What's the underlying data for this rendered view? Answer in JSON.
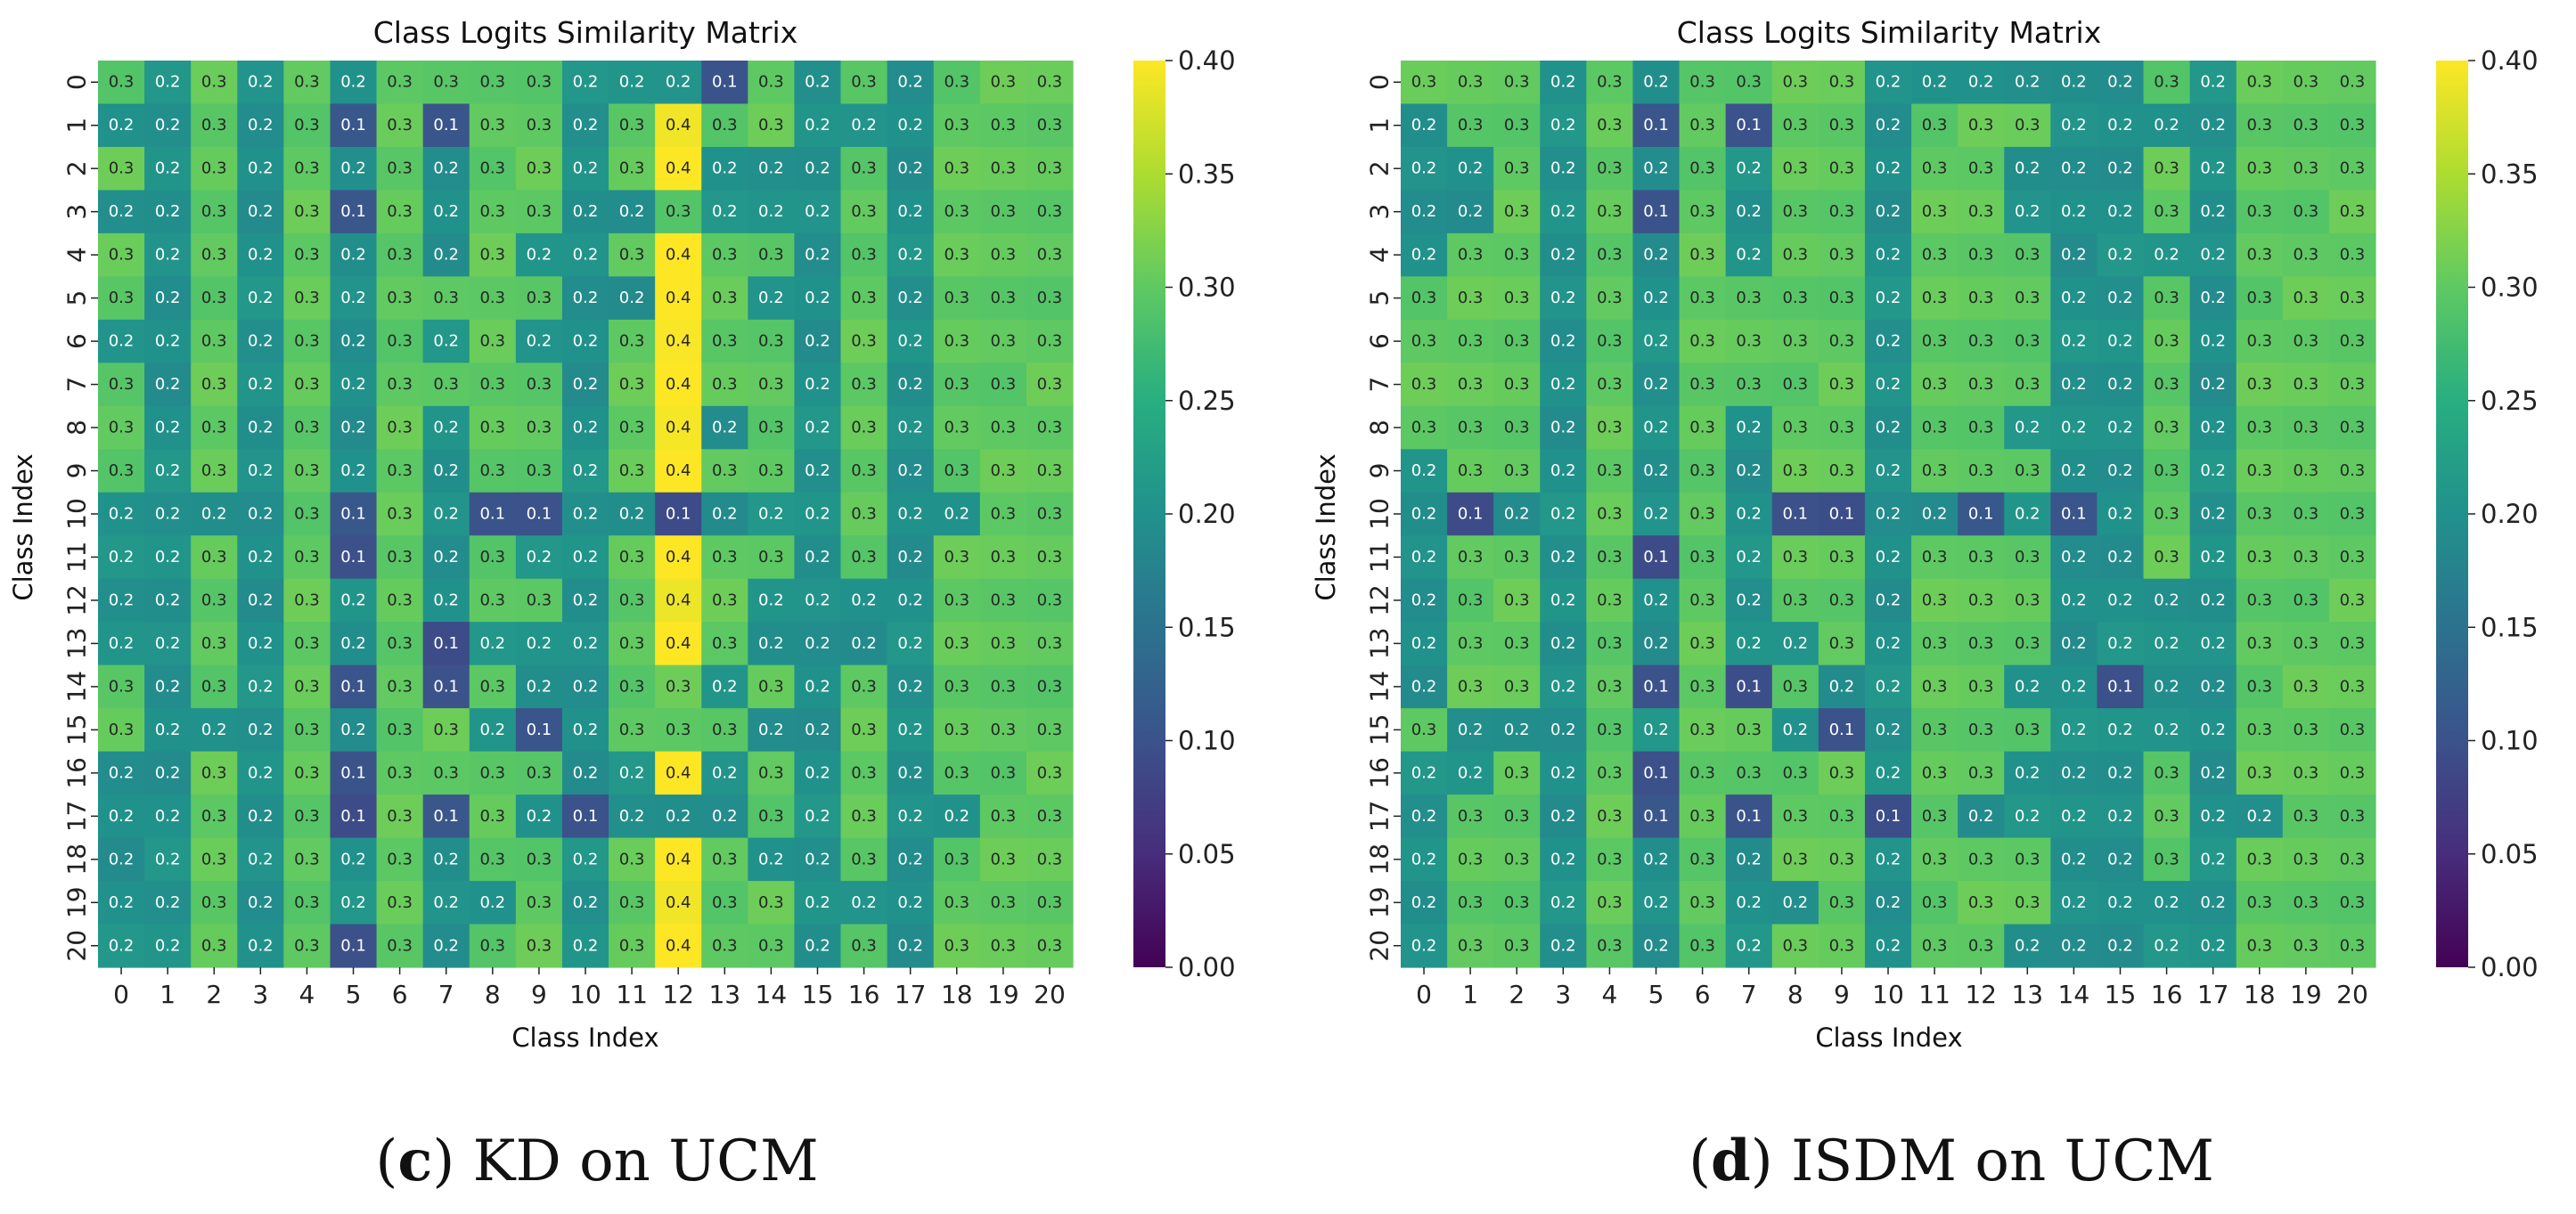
{
  "chart_data": [
    {
      "type": "heatmap",
      "title": "Class Logits Similarity Matrix",
      "xlabel": "Class Index",
      "ylabel": "Class Index",
      "categories": [
        "0",
        "1",
        "2",
        "3",
        "4",
        "5",
        "6",
        "7",
        "8",
        "9",
        "10",
        "11",
        "12",
        "13",
        "14",
        "15",
        "16",
        "17",
        "18",
        "19",
        "20"
      ],
      "vmin": 0.0,
      "vmax": 0.4,
      "colormap": "viridis",
      "colorbar_ticks": [
        "0.00",
        "0.05",
        "0.10",
        "0.15",
        "0.20",
        "0.25",
        "0.30",
        "0.35",
        "0.40"
      ],
      "caption_letter": "c",
      "caption_text": " KD on UCM",
      "values": [
        [
          0.3,
          0.2,
          0.3,
          0.2,
          0.3,
          0.2,
          0.3,
          0.3,
          0.3,
          0.3,
          0.2,
          0.2,
          0.2,
          0.1,
          0.3,
          0.2,
          0.3,
          0.2,
          0.3,
          0.3,
          0.3
        ],
        [
          0.2,
          0.2,
          0.3,
          0.2,
          0.3,
          0.1,
          0.3,
          0.1,
          0.3,
          0.3,
          0.2,
          0.3,
          0.4,
          0.3,
          0.3,
          0.2,
          0.2,
          0.2,
          0.3,
          0.3,
          0.3
        ],
        [
          0.3,
          0.2,
          0.3,
          0.2,
          0.3,
          0.2,
          0.3,
          0.2,
          0.3,
          0.3,
          0.2,
          0.3,
          0.4,
          0.2,
          0.2,
          0.2,
          0.3,
          0.2,
          0.3,
          0.3,
          0.3
        ],
        [
          0.2,
          0.2,
          0.3,
          0.2,
          0.3,
          0.1,
          0.3,
          0.2,
          0.3,
          0.3,
          0.2,
          0.2,
          0.3,
          0.2,
          0.2,
          0.2,
          0.3,
          0.2,
          0.3,
          0.3,
          0.3
        ],
        [
          0.3,
          0.2,
          0.3,
          0.2,
          0.3,
          0.2,
          0.3,
          0.2,
          0.3,
          0.2,
          0.2,
          0.3,
          0.4,
          0.3,
          0.3,
          0.2,
          0.3,
          0.2,
          0.3,
          0.3,
          0.3
        ],
        [
          0.3,
          0.2,
          0.3,
          0.2,
          0.3,
          0.2,
          0.3,
          0.3,
          0.3,
          0.3,
          0.2,
          0.2,
          0.4,
          0.3,
          0.2,
          0.2,
          0.3,
          0.2,
          0.3,
          0.3,
          0.3
        ],
        [
          0.2,
          0.2,
          0.3,
          0.2,
          0.3,
          0.2,
          0.3,
          0.2,
          0.3,
          0.2,
          0.2,
          0.3,
          0.4,
          0.3,
          0.3,
          0.2,
          0.3,
          0.2,
          0.3,
          0.3,
          0.3
        ],
        [
          0.3,
          0.2,
          0.3,
          0.2,
          0.3,
          0.2,
          0.3,
          0.3,
          0.3,
          0.3,
          0.2,
          0.3,
          0.4,
          0.3,
          0.3,
          0.2,
          0.3,
          0.2,
          0.3,
          0.3,
          0.3
        ],
        [
          0.3,
          0.2,
          0.3,
          0.2,
          0.3,
          0.2,
          0.3,
          0.2,
          0.3,
          0.3,
          0.2,
          0.3,
          0.4,
          0.2,
          0.3,
          0.2,
          0.3,
          0.2,
          0.3,
          0.3,
          0.3
        ],
        [
          0.3,
          0.2,
          0.3,
          0.2,
          0.3,
          0.2,
          0.3,
          0.2,
          0.3,
          0.3,
          0.2,
          0.3,
          0.4,
          0.3,
          0.3,
          0.2,
          0.3,
          0.2,
          0.3,
          0.3,
          0.3
        ],
        [
          0.2,
          0.2,
          0.2,
          0.2,
          0.3,
          0.1,
          0.3,
          0.2,
          0.1,
          0.1,
          0.2,
          0.2,
          0.1,
          0.2,
          0.2,
          0.2,
          0.3,
          0.2,
          0.2,
          0.3,
          0.3
        ],
        [
          0.2,
          0.2,
          0.3,
          0.2,
          0.3,
          0.1,
          0.3,
          0.2,
          0.3,
          0.2,
          0.2,
          0.3,
          0.4,
          0.3,
          0.3,
          0.2,
          0.3,
          0.2,
          0.3,
          0.3,
          0.3
        ],
        [
          0.2,
          0.2,
          0.3,
          0.2,
          0.3,
          0.2,
          0.3,
          0.2,
          0.3,
          0.3,
          0.2,
          0.3,
          0.4,
          0.3,
          0.2,
          0.2,
          0.2,
          0.2,
          0.3,
          0.3,
          0.3
        ],
        [
          0.2,
          0.2,
          0.3,
          0.2,
          0.3,
          0.2,
          0.3,
          0.1,
          0.2,
          0.2,
          0.2,
          0.3,
          0.4,
          0.3,
          0.2,
          0.2,
          0.2,
          0.2,
          0.3,
          0.3,
          0.3
        ],
        [
          0.3,
          0.2,
          0.3,
          0.2,
          0.3,
          0.1,
          0.3,
          0.1,
          0.3,
          0.2,
          0.2,
          0.3,
          0.3,
          0.2,
          0.3,
          0.2,
          0.3,
          0.2,
          0.3,
          0.3,
          0.3
        ],
        [
          0.3,
          0.2,
          0.2,
          0.2,
          0.3,
          0.2,
          0.3,
          0.3,
          0.2,
          0.1,
          0.2,
          0.3,
          0.3,
          0.3,
          0.2,
          0.2,
          0.3,
          0.2,
          0.3,
          0.3,
          0.3
        ],
        [
          0.2,
          0.2,
          0.3,
          0.2,
          0.3,
          0.1,
          0.3,
          0.3,
          0.3,
          0.3,
          0.2,
          0.2,
          0.4,
          0.2,
          0.3,
          0.2,
          0.3,
          0.2,
          0.3,
          0.3,
          0.3
        ],
        [
          0.2,
          0.2,
          0.3,
          0.2,
          0.3,
          0.1,
          0.3,
          0.1,
          0.3,
          0.2,
          0.1,
          0.2,
          0.2,
          0.2,
          0.3,
          0.2,
          0.3,
          0.2,
          0.2,
          0.3,
          0.3
        ],
        [
          0.2,
          0.2,
          0.3,
          0.2,
          0.3,
          0.2,
          0.3,
          0.2,
          0.3,
          0.3,
          0.2,
          0.3,
          0.4,
          0.3,
          0.2,
          0.2,
          0.3,
          0.2,
          0.3,
          0.3,
          0.3
        ],
        [
          0.2,
          0.2,
          0.3,
          0.2,
          0.3,
          0.2,
          0.3,
          0.2,
          0.2,
          0.3,
          0.2,
          0.3,
          0.4,
          0.3,
          0.3,
          0.2,
          0.2,
          0.2,
          0.3,
          0.3,
          0.3
        ],
        [
          0.2,
          0.2,
          0.3,
          0.2,
          0.3,
          0.1,
          0.3,
          0.2,
          0.3,
          0.3,
          0.2,
          0.3,
          0.4,
          0.3,
          0.3,
          0.2,
          0.3,
          0.2,
          0.3,
          0.3,
          0.3
        ]
      ]
    },
    {
      "type": "heatmap",
      "title": "Class Logits Similarity Matrix",
      "xlabel": "Class Index",
      "ylabel": "Class Index",
      "categories": [
        "0",
        "1",
        "2",
        "3",
        "4",
        "5",
        "6",
        "7",
        "8",
        "9",
        "10",
        "11",
        "12",
        "13",
        "14",
        "15",
        "16",
        "17",
        "18",
        "19",
        "20"
      ],
      "vmin": 0.0,
      "vmax": 0.4,
      "colormap": "viridis",
      "colorbar_ticks": [
        "0.00",
        "0.05",
        "0.10",
        "0.15",
        "0.20",
        "0.25",
        "0.30",
        "0.35",
        "0.40"
      ],
      "caption_letter": "d",
      "caption_text": " ISDM on UCM",
      "values": [
        [
          0.3,
          0.3,
          0.3,
          0.2,
          0.3,
          0.2,
          0.3,
          0.3,
          0.3,
          0.3,
          0.2,
          0.2,
          0.2,
          0.2,
          0.2,
          0.2,
          0.3,
          0.2,
          0.3,
          0.3,
          0.3
        ],
        [
          0.2,
          0.3,
          0.3,
          0.2,
          0.3,
          0.1,
          0.3,
          0.1,
          0.3,
          0.3,
          0.2,
          0.3,
          0.3,
          0.3,
          0.2,
          0.2,
          0.2,
          0.2,
          0.3,
          0.3,
          0.3
        ],
        [
          0.2,
          0.2,
          0.3,
          0.2,
          0.3,
          0.2,
          0.3,
          0.2,
          0.3,
          0.3,
          0.2,
          0.3,
          0.3,
          0.2,
          0.2,
          0.2,
          0.3,
          0.2,
          0.3,
          0.3,
          0.3
        ],
        [
          0.2,
          0.2,
          0.3,
          0.2,
          0.3,
          0.1,
          0.3,
          0.2,
          0.3,
          0.3,
          0.2,
          0.3,
          0.3,
          0.2,
          0.2,
          0.2,
          0.3,
          0.2,
          0.3,
          0.3,
          0.3
        ],
        [
          0.2,
          0.3,
          0.3,
          0.2,
          0.3,
          0.2,
          0.3,
          0.2,
          0.3,
          0.3,
          0.2,
          0.3,
          0.3,
          0.3,
          0.2,
          0.2,
          0.2,
          0.2,
          0.3,
          0.3,
          0.3
        ],
        [
          0.3,
          0.3,
          0.3,
          0.2,
          0.3,
          0.2,
          0.3,
          0.3,
          0.3,
          0.3,
          0.2,
          0.3,
          0.3,
          0.3,
          0.2,
          0.2,
          0.3,
          0.2,
          0.3,
          0.3,
          0.3
        ],
        [
          0.3,
          0.3,
          0.3,
          0.2,
          0.3,
          0.2,
          0.3,
          0.3,
          0.3,
          0.3,
          0.2,
          0.3,
          0.3,
          0.3,
          0.2,
          0.2,
          0.3,
          0.2,
          0.3,
          0.3,
          0.3
        ],
        [
          0.3,
          0.3,
          0.3,
          0.2,
          0.3,
          0.2,
          0.3,
          0.3,
          0.3,
          0.3,
          0.2,
          0.3,
          0.3,
          0.3,
          0.2,
          0.2,
          0.3,
          0.2,
          0.3,
          0.3,
          0.3
        ],
        [
          0.3,
          0.3,
          0.3,
          0.2,
          0.3,
          0.2,
          0.3,
          0.2,
          0.3,
          0.3,
          0.2,
          0.3,
          0.3,
          0.2,
          0.2,
          0.2,
          0.3,
          0.2,
          0.3,
          0.3,
          0.3
        ],
        [
          0.2,
          0.3,
          0.3,
          0.2,
          0.3,
          0.2,
          0.3,
          0.2,
          0.3,
          0.3,
          0.2,
          0.3,
          0.3,
          0.3,
          0.2,
          0.2,
          0.3,
          0.2,
          0.3,
          0.3,
          0.3
        ],
        [
          0.2,
          0.1,
          0.2,
          0.2,
          0.3,
          0.2,
          0.3,
          0.2,
          0.1,
          0.1,
          0.2,
          0.2,
          0.1,
          0.2,
          0.1,
          0.2,
          0.3,
          0.2,
          0.3,
          0.3,
          0.3
        ],
        [
          0.2,
          0.3,
          0.3,
          0.2,
          0.3,
          0.1,
          0.3,
          0.2,
          0.3,
          0.3,
          0.2,
          0.3,
          0.3,
          0.3,
          0.2,
          0.2,
          0.3,
          0.2,
          0.3,
          0.3,
          0.3
        ],
        [
          0.2,
          0.3,
          0.3,
          0.2,
          0.3,
          0.2,
          0.3,
          0.2,
          0.3,
          0.3,
          0.2,
          0.3,
          0.3,
          0.3,
          0.2,
          0.2,
          0.2,
          0.2,
          0.3,
          0.3,
          0.3
        ],
        [
          0.2,
          0.3,
          0.3,
          0.2,
          0.3,
          0.2,
          0.3,
          0.2,
          0.2,
          0.3,
          0.2,
          0.3,
          0.3,
          0.3,
          0.2,
          0.2,
          0.2,
          0.2,
          0.3,
          0.3,
          0.3
        ],
        [
          0.2,
          0.3,
          0.3,
          0.2,
          0.3,
          0.1,
          0.3,
          0.1,
          0.3,
          0.2,
          0.2,
          0.3,
          0.3,
          0.2,
          0.2,
          0.1,
          0.2,
          0.2,
          0.3,
          0.3,
          0.3
        ],
        [
          0.3,
          0.2,
          0.2,
          0.2,
          0.3,
          0.2,
          0.3,
          0.3,
          0.2,
          0.1,
          0.2,
          0.3,
          0.3,
          0.3,
          0.2,
          0.2,
          0.2,
          0.2,
          0.3,
          0.3,
          0.3
        ],
        [
          0.2,
          0.2,
          0.3,
          0.2,
          0.3,
          0.1,
          0.3,
          0.3,
          0.3,
          0.3,
          0.2,
          0.3,
          0.3,
          0.2,
          0.2,
          0.2,
          0.3,
          0.2,
          0.3,
          0.3,
          0.3
        ],
        [
          0.2,
          0.3,
          0.3,
          0.2,
          0.3,
          0.1,
          0.3,
          0.1,
          0.3,
          0.3,
          0.1,
          0.3,
          0.2,
          0.2,
          0.2,
          0.2,
          0.3,
          0.2,
          0.2,
          0.3,
          0.3
        ],
        [
          0.2,
          0.3,
          0.3,
          0.2,
          0.3,
          0.2,
          0.3,
          0.2,
          0.3,
          0.3,
          0.2,
          0.3,
          0.3,
          0.3,
          0.2,
          0.2,
          0.3,
          0.2,
          0.3,
          0.3,
          0.3
        ],
        [
          0.2,
          0.3,
          0.3,
          0.2,
          0.3,
          0.2,
          0.3,
          0.2,
          0.2,
          0.3,
          0.2,
          0.3,
          0.3,
          0.3,
          0.2,
          0.2,
          0.2,
          0.2,
          0.3,
          0.3,
          0.3
        ],
        [
          0.2,
          0.3,
          0.3,
          0.2,
          0.3,
          0.2,
          0.3,
          0.2,
          0.3,
          0.3,
          0.2,
          0.3,
          0.3,
          0.2,
          0.2,
          0.2,
          0.2,
          0.2,
          0.3,
          0.3,
          0.3
        ]
      ]
    }
  ]
}
